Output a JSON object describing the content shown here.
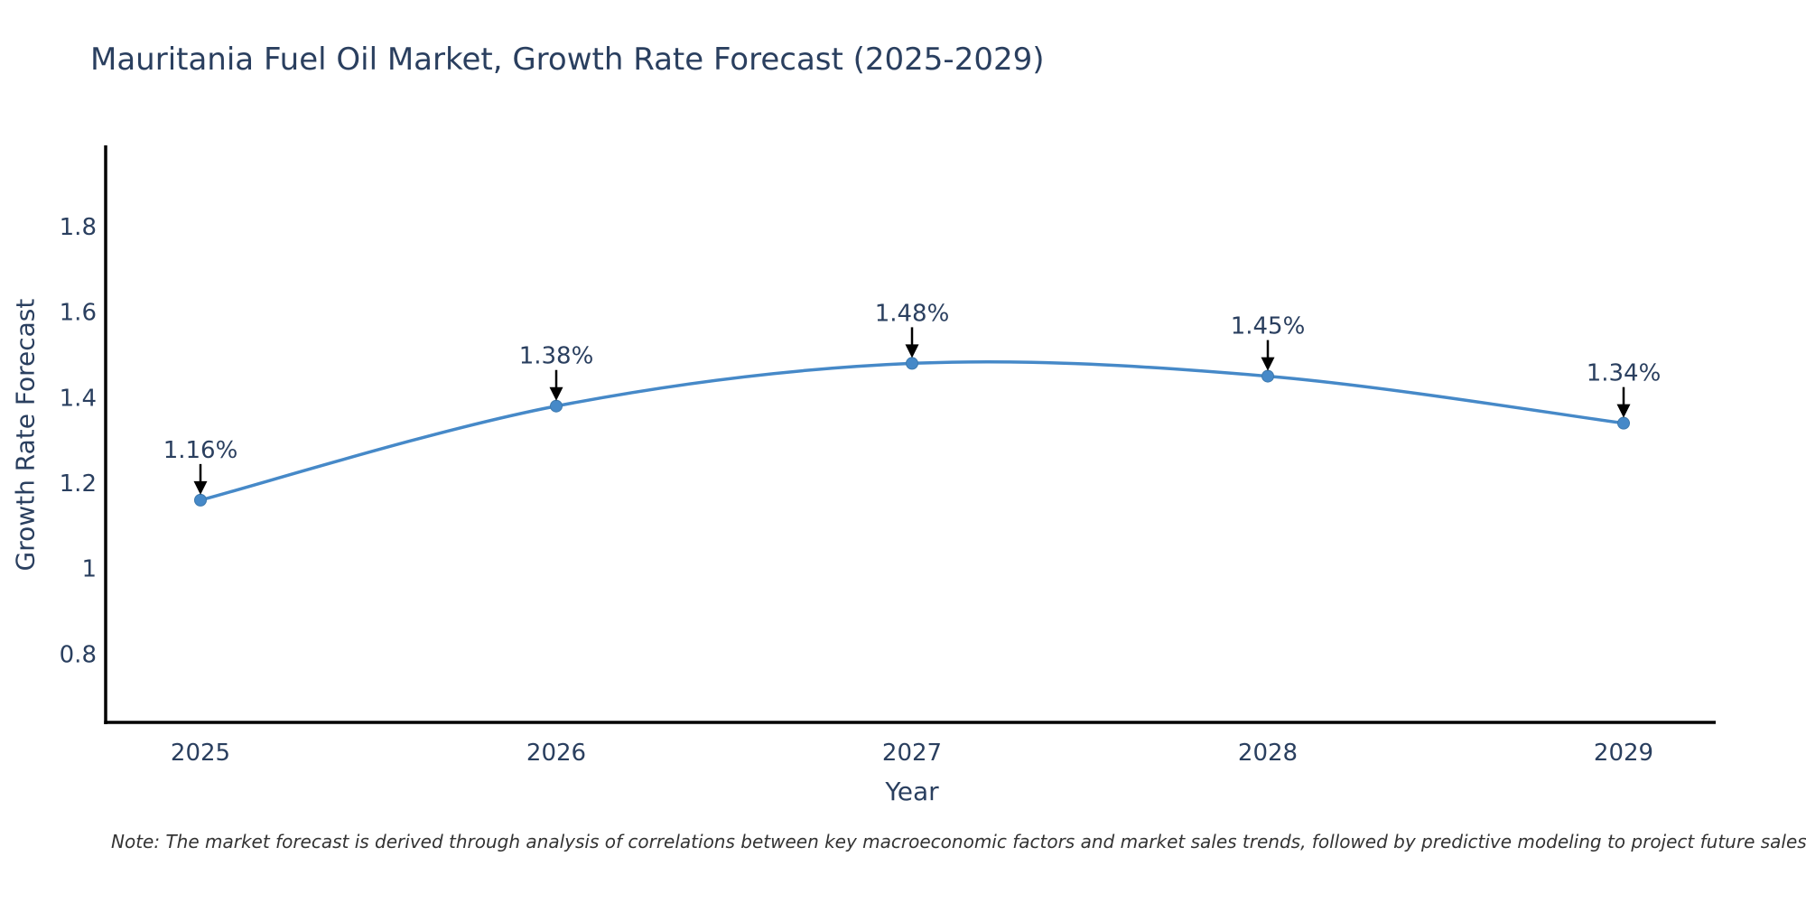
{
  "chart_data": {
    "type": "line",
    "title": "Mauritania Fuel Oil Market, Growth Rate Forecast (2025-2029)",
    "xlabel": "Year",
    "ylabel": "Growth Rate Forecast",
    "x": [
      2025,
      2026,
      2027,
      2028,
      2029
    ],
    "series": [
      {
        "name": "Growth Rate Forecast",
        "values": [
          1.16,
          1.38,
          1.48,
          1.45,
          1.34
        ]
      }
    ],
    "point_labels": [
      "1.16%",
      "1.38%",
      "1.48%",
      "1.45%",
      "1.34%"
    ],
    "x_tick_labels": [
      "2025",
      "2026",
      "2027",
      "2028",
      "2029"
    ],
    "y_tick_values": [
      0.8,
      1.0,
      1.2,
      1.4,
      1.6,
      1.8
    ],
    "y_tick_labels": [
      "0.8",
      "1",
      "1.2",
      "1.4",
      "1.6",
      "1.8"
    ],
    "ylim": [
      0.64,
      1.99
    ],
    "line_shape": "spline",
    "grid": false,
    "legend": "none",
    "colors": {
      "line": "#4689c8",
      "marker": "#4689c8",
      "marker_edge": "#3d79ad",
      "axis": "#000000",
      "text": "#2a3f5f",
      "arrow": "#000000",
      "note": "#333333",
      "background": "#ffffff"
    }
  },
  "note": {
    "text": "Note: The market forecast is derived through analysis of correlations between key macroeconomic factors and market sales trends, followed by predictive modeling to project future sales"
  }
}
